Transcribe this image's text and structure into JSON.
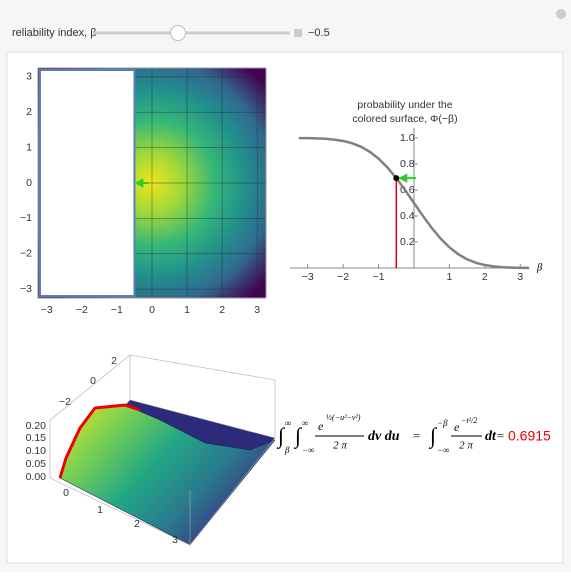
{
  "control": {
    "label": "reliability index, β",
    "value": "−0.5"
  },
  "density_plot": {
    "xlim": [
      -3.25,
      3.25
    ],
    "ylim": [
      -3.25,
      3.25
    ],
    "beta": -0.5,
    "xticks": [
      {
        "value": -3,
        "label": "−3"
      },
      {
        "value": -2,
        "label": "−2"
      },
      {
        "value": -1,
        "label": "−1"
      },
      0,
      1,
      2,
      3
    ],
    "yticks": [
      {
        "value": -3,
        "label": "−3"
      },
      {
        "value": -2,
        "label": "−2"
      },
      {
        "value": -1,
        "label": "−1"
      },
      0,
      1,
      2,
      3
    ]
  },
  "cdf_plot": {
    "title": [
      "probability under the",
      "colored surface, Φ(−β)"
    ],
    "xlabel": "β",
    "xlim": [
      -3.5,
      3.5
    ],
    "ylim": [
      0,
      1.05
    ],
    "xticks": [
      {
        "value": -3,
        "label": "−3"
      },
      {
        "value": -2,
        "label": "−2"
      },
      {
        "value": -1,
        "label": "−1"
      },
      1,
      2,
      3
    ],
    "yticks": [
      0.2,
      0.4,
      0.6,
      0.8,
      {
        "value": 1,
        "label": "1.0"
      }
    ],
    "x": [
      -3.25,
      -3,
      -2.75,
      -2.5,
      -2.25,
      -2,
      -1.75,
      -1.5,
      -1.25,
      -1,
      -0.75,
      -0.5,
      -0.25,
      0,
      0.25,
      0.5,
      0.75,
      1,
      1.25,
      1.5,
      1.75,
      2,
      2.25,
      2.5,
      2.75,
      3,
      3.25
    ],
    "y": [
      0.9994,
      0.9987,
      0.997,
      0.9938,
      0.9878,
      0.9772,
      0.9599,
      0.9332,
      0.8944,
      0.8413,
      0.7734,
      0.6915,
      0.5987,
      0.5,
      0.4013,
      0.3085,
      0.2266,
      0.1587,
      0.1056,
      0.0668,
      0.0401,
      0.0228,
      0.0122,
      0.0062,
      0.003,
      0.0013,
      0.0006
    ],
    "beta": -0.5
  },
  "surface_plot": {
    "zticks": [
      "0.20",
      "0.15",
      "0.10",
      "0.05",
      "0.00"
    ],
    "yticks": [
      "−2",
      "0",
      "2"
    ],
    "xticks": [
      "0",
      "1",
      "2",
      "3"
    ]
  },
  "formula": {
    "integral": "∫",
    "inf": "∞",
    "beta": "β",
    "minf": "−∞",
    "e": "e",
    "exp1": "½(−u²−v²)",
    "twopi": "2 π",
    "dvdu": "dv du",
    "eq": "=",
    "mbeta": "−β",
    "exp2": "−t²/2",
    "dt": "dt"
  },
  "result": 0.6915
}
